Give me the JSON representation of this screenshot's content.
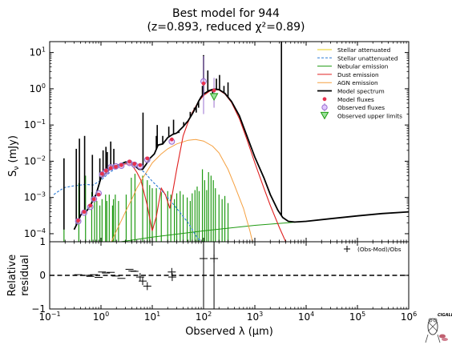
{
  "chart_data": {
    "type": "line",
    "title": "Best model for 944",
    "subtitle": "(z=0.893, reduced χ²=0.89)",
    "xlabel": "Observed λ (μm)",
    "ylabel": "S_ν (mJy)",
    "residual_ylabel": [
      "Relative",
      "residual"
    ],
    "x_scale": "log",
    "y_scale": "log",
    "xlim": [
      0.1,
      1000000
    ],
    "ylim": [
      6e-05,
      20
    ],
    "residual_ylim": [
      -1,
      1
    ],
    "x_ticks": [
      {
        "v": 0.1,
        "base": "10",
        "exp": "−1"
      },
      {
        "v": 1,
        "base": "10",
        "exp": "0"
      },
      {
        "v": 10,
        "base": "10",
        "exp": "1"
      },
      {
        "v": 100,
        "base": "10",
        "exp": "2"
      },
      {
        "v": 1000,
        "base": "10",
        "exp": "3"
      },
      {
        "v": 10000,
        "base": "10",
        "exp": "4"
      },
      {
        "v": 100000,
        "base": "10",
        "exp": "5"
      },
      {
        "v": 1000000,
        "base": "10",
        "exp": "6"
      }
    ],
    "y_ticks": [
      {
        "v": 0.0001,
        "base": "10",
        "exp": "−4"
      },
      {
        "v": 0.001,
        "base": "10",
        "exp": "−3"
      },
      {
        "v": 0.01,
        "base": "10",
        "exp": "−2"
      },
      {
        "v": 0.1,
        "base": "10",
        "exp": "−1"
      },
      {
        "v": 1,
        "base": "10",
        "exp": "0"
      },
      {
        "v": 10,
        "base": "10",
        "exp": "1"
      }
    ],
    "residual_ticks": [
      {
        "v": 1,
        "label": "1"
      },
      {
        "v": 0,
        "label": "0"
      },
      {
        "v": -1,
        "label": "−1"
      }
    ],
    "legend": {
      "placement": "top-right",
      "entries": [
        {
          "label": "Stellar attenuated",
          "color": "#e8d21a",
          "style": "solid"
        },
        {
          "label": "Stellar unattenuated",
          "color": "#2b7ad6",
          "style": "dashed"
        },
        {
          "label": "Nebular emission",
          "color": "#1f9a12",
          "style": "solid"
        },
        {
          "label": "Dust emission",
          "color": "#e02020",
          "style": "solid"
        },
        {
          "label": "AGN emission",
          "color": "#f5a040",
          "style": "solid"
        },
        {
          "label": "Model spectrum",
          "color": "#000000",
          "style": "thick"
        },
        {
          "label": "Model fluxes",
          "color": "#e8324e",
          "style": "dot"
        },
        {
          "label": "Observed fluxes",
          "color": "#9a70d0",
          "style": "errdot"
        },
        {
          "label": "Observed upper limits",
          "color": "#1f9a12",
          "style": "triangle"
        }
      ]
    },
    "residual_legend": "(Obs-Mod)/Obs",
    "series": {
      "model_spectrum": [
        [
          0.3,
          0.00013
        ],
        [
          0.36,
          0.00022
        ],
        [
          0.4,
          0.00032
        ],
        [
          0.45,
          0.0004
        ],
        [
          0.5,
          0.00038
        ],
        [
          0.6,
          0.00055
        ],
        [
          0.8,
          0.0012
        ],
        [
          1.0,
          0.0035
        ],
        [
          1.3,
          0.005
        ],
        [
          1.6,
          0.007
        ],
        [
          2.0,
          0.0075
        ],
        [
          2.5,
          0.0085
        ],
        [
          3.0,
          0.0095
        ],
        [
          3.8,
          0.0092
        ],
        [
          4.5,
          0.0075
        ],
        [
          5.5,
          0.006
        ],
        [
          6.5,
          0.006
        ],
        [
          7.5,
          0.008
        ],
        [
          9,
          0.012
        ],
        [
          11,
          0.016
        ],
        [
          13,
          0.028
        ],
        [
          16,
          0.03
        ],
        [
          20,
          0.045
        ],
        [
          25,
          0.055
        ],
        [
          30,
          0.06
        ],
        [
          40,
          0.09
        ],
        [
          50,
          0.13
        ],
        [
          60,
          0.2
        ],
        [
          70,
          0.3
        ],
        [
          80,
          0.45
        ],
        [
          90,
          0.6
        ],
        [
          100,
          0.72
        ],
        [
          130,
          0.9
        ],
        [
          160,
          0.98
        ],
        [
          200,
          0.95
        ],
        [
          260,
          0.75
        ],
        [
          350,
          0.45
        ],
        [
          500,
          0.18
        ],
        [
          700,
          0.05
        ],
        [
          1000,
          0.013
        ],
        [
          1500,
          0.0035
        ],
        [
          2000,
          0.0012
        ],
        [
          2800,
          0.00045
        ],
        [
          3500,
          0.00028
        ],
        [
          4500,
          0.00022
        ],
        [
          6000,
          0.00021
        ],
        [
          10000,
          0.00022
        ],
        [
          30000,
          0.00026
        ],
        [
          100000,
          0.00031
        ],
        [
          300000,
          0.00036
        ],
        [
          1000000,
          0.0004
        ]
      ],
      "dust_emission": [
        [
          1.0,
          0.0035
        ],
        [
          1.5,
          0.006
        ],
        [
          2.0,
          0.007
        ],
        [
          3,
          0.0085
        ],
        [
          4,
          0.008
        ],
        [
          5,
          0.005
        ],
        [
          6,
          0.003
        ],
        [
          8,
          0.0006
        ],
        [
          9,
          0.00025
        ],
        [
          10,
          0.00012
        ],
        [
          12,
          0.0003
        ],
        [
          15,
          0.0018
        ],
        [
          18,
          0.0012
        ],
        [
          22,
          0.0005
        ],
        [
          30,
          0.006
        ],
        [
          40,
          0.05
        ],
        [
          50,
          0.12
        ],
        [
          60,
          0.22
        ],
        [
          80,
          0.45
        ],
        [
          100,
          0.65
        ],
        [
          130,
          0.85
        ],
        [
          160,
          0.95
        ],
        [
          200,
          0.92
        ],
        [
          260,
          0.72
        ],
        [
          350,
          0.42
        ],
        [
          500,
          0.15
        ],
        [
          700,
          0.04
        ],
        [
          1000,
          0.009
        ],
        [
          1500,
          0.0018
        ],
        [
          2000,
          0.0006
        ],
        [
          3000,
          0.00015
        ],
        [
          4000,
          6e-05
        ]
      ],
      "agn_emission": [
        [
          1.6,
          6e-05
        ],
        [
          2.0,
          0.00012
        ],
        [
          3,
          0.0004
        ],
        [
          4,
          0.0009
        ],
        [
          5,
          0.0018
        ],
        [
          7,
          0.004
        ],
        [
          10,
          0.009
        ],
        [
          15,
          0.016
        ],
        [
          20,
          0.022
        ],
        [
          30,
          0.03
        ],
        [
          50,
          0.038
        ],
        [
          70,
          0.04
        ],
        [
          100,
          0.036
        ],
        [
          150,
          0.026
        ],
        [
          200,
          0.017
        ],
        [
          300,
          0.006
        ],
        [
          400,
          0.0022
        ],
        [
          600,
          0.0005
        ],
        [
          800,
          0.00012
        ],
        [
          900,
          6e-05
        ]
      ],
      "stellar_unattenuated": [
        [
          0.12,
          0.0012
        ],
        [
          0.16,
          0.0016
        ],
        [
          0.2,
          0.0019
        ],
        [
          0.3,
          0.0021
        ],
        [
          0.4,
          0.0022
        ],
        [
          0.5,
          0.0023
        ],
        [
          0.7,
          0.0022
        ],
        [
          1.0,
          0.003
        ],
        [
          1.5,
          0.005
        ],
        [
          2.0,
          0.0065
        ],
        [
          3,
          0.0085
        ],
        [
          4,
          0.009
        ],
        [
          5,
          0.007
        ],
        [
          7,
          0.005
        ],
        [
          10,
          0.0028
        ],
        [
          15,
          0.0016
        ],
        [
          20,
          0.001
        ],
        [
          30,
          0.0005
        ],
        [
          50,
          0.0002
        ],
        [
          70,
          9e-05
        ],
        [
          90,
          6e-05
        ]
      ],
      "nebular_continuum": [
        [
          1.0,
          5e-05
        ],
        [
          10,
          8e-05
        ],
        [
          100,
          0.00012
        ],
        [
          1000,
          0.00017
        ],
        [
          10000,
          0.00022
        ]
      ],
      "nebular_lines": [
        [
          0.19,
          0.012
        ],
        [
          0.37,
          0.0025
        ],
        [
          0.5,
          0.004
        ],
        [
          0.66,
          0.0014
        ],
        [
          0.75,
          0.0011
        ],
        [
          0.83,
          0.0008
        ],
        [
          0.95,
          0.0006
        ],
        [
          1.05,
          0.0009
        ],
        [
          1.23,
          0.0012
        ],
        [
          1.3,
          0.0008
        ],
        [
          1.45,
          0.0012
        ],
        [
          1.68,
          0.0006
        ],
        [
          1.75,
          0.0009
        ],
        [
          1.9,
          0.0012
        ],
        [
          2.2,
          0.0008
        ],
        [
          3.1,
          0.0012
        ],
        [
          3.9,
          0.0035
        ],
        [
          4.6,
          0.0045
        ],
        [
          6.5,
          0.004
        ],
        [
          8.0,
          0.003
        ],
        [
          8.9,
          0.0022
        ],
        [
          10,
          0.0018
        ],
        [
          12,
          0.0018
        ],
        [
          15,
          0.0014
        ],
        [
          20,
          0.0015
        ],
        [
          23,
          0.0012
        ],
        [
          27,
          0.0009
        ],
        [
          30,
          0.0013
        ],
        [
          35,
          0.0015
        ],
        [
          40,
          0.0012
        ],
        [
          48,
          0.001
        ],
        [
          55,
          0.0008
        ],
        [
          60,
          0.0013
        ],
        [
          68,
          0.0016
        ],
        [
          75,
          0.002
        ],
        [
          82,
          0.0015
        ],
        [
          95,
          0.006
        ],
        [
          105,
          0.003
        ],
        [
          115,
          0.0016
        ],
        [
          125,
          0.005
        ],
        [
          140,
          0.004
        ],
        [
          155,
          0.003
        ],
        [
          170,
          0.0018
        ],
        [
          200,
          0.0012
        ],
        [
          230,
          0.0009
        ],
        [
          260,
          0.0011
        ],
        [
          300,
          0.0007
        ]
      ],
      "spectrum_spikes": [
        [
          0.19,
          0.012
        ],
        [
          0.33,
          0.022
        ],
        [
          0.38,
          0.042
        ],
        [
          0.48,
          0.05
        ],
        [
          0.68,
          0.015
        ],
        [
          0.95,
          0.012
        ],
        [
          1.1,
          0.02
        ],
        [
          1.25,
          0.025
        ],
        [
          1.33,
          0.018
        ],
        [
          1.55,
          0.035
        ],
        [
          1.78,
          0.022
        ],
        [
          6.6,
          0.22
        ],
        [
          12,
          0.05
        ],
        [
          12.5,
          0.1
        ],
        [
          16,
          0.05
        ],
        [
          21,
          0.09
        ],
        [
          26,
          0.14
        ],
        [
          33,
          0.06
        ],
        [
          41,
          0.12
        ],
        [
          46,
          0.12
        ],
        [
          55,
          0.23
        ],
        [
          66,
          0.3
        ],
        [
          72,
          0.22
        ],
        [
          80,
          0.3
        ],
        [
          95,
          1.2
        ],
        [
          100,
          8.5
        ],
        [
          121,
          3.2
        ],
        [
          150,
          0.75
        ],
        [
          178,
          1.9
        ],
        [
          205,
          2.4
        ],
        [
          250,
          1.2
        ],
        [
          300,
          1.5
        ],
        [
          3300,
          20
        ]
      ],
      "model_fluxes": [
        [
          0.36,
          0.00023
        ],
        [
          0.47,
          0.0004
        ],
        [
          0.62,
          0.0006
        ],
        [
          0.73,
          0.0009
        ],
        [
          0.9,
          0.0012
        ],
        [
          1.05,
          0.0045
        ],
        [
          1.25,
          0.0055
        ],
        [
          1.55,
          0.0065
        ],
        [
          1.95,
          0.007
        ],
        [
          2.5,
          0.0078
        ],
        [
          3.6,
          0.0098
        ],
        [
          4.5,
          0.0085
        ],
        [
          5.8,
          0.0078
        ],
        [
          8.0,
          0.012
        ],
        [
          24,
          0.04
        ],
        [
          100,
          1.4
        ],
        [
          160,
          0.9
        ]
      ],
      "observed_fluxes": [
        [
          0.36,
          0.00022
        ],
        [
          0.47,
          0.00038
        ],
        [
          0.62,
          0.00055
        ],
        [
          0.73,
          0.0009
        ],
        [
          0.9,
          0.0013
        ],
        [
          1.05,
          0.0043
        ],
        [
          1.25,
          0.0052
        ],
        [
          1.55,
          0.0068
        ],
        [
          1.95,
          0.0072
        ],
        [
          2.5,
          0.0075
        ],
        [
          3.6,
          0.009
        ],
        [
          4.5,
          0.008
        ],
        [
          5.8,
          0.0072
        ],
        [
          8.0,
          0.011
        ],
        [
          24,
          0.035
        ],
        [
          100,
          1.6
        ]
      ],
      "upper_limits": [
        [
          160,
          0.6
        ]
      ],
      "residuals": [
        [
          0.36,
          0.02
        ],
        [
          0.47,
          0.0
        ],
        [
          0.62,
          -0.03
        ],
        [
          0.73,
          0.02
        ],
        [
          0.9,
          -0.06
        ],
        [
          1.05,
          0.1
        ],
        [
          1.25,
          0.07
        ],
        [
          1.55,
          0.09
        ],
        [
          1.95,
          -0.02
        ],
        [
          2.5,
          -0.09
        ],
        [
          3.6,
          0.18
        ],
        [
          4.1,
          0.13
        ],
        [
          4.5,
          0.12
        ],
        [
          5.8,
          -0.05
        ],
        [
          6.5,
          -0.17
        ],
        [
          8.0,
          -0.32
        ],
        [
          24,
          0.1
        ],
        [
          24.5,
          -0.05
        ],
        [
          100,
          0.5
        ],
        [
          160,
          0.5
        ]
      ]
    }
  }
}
